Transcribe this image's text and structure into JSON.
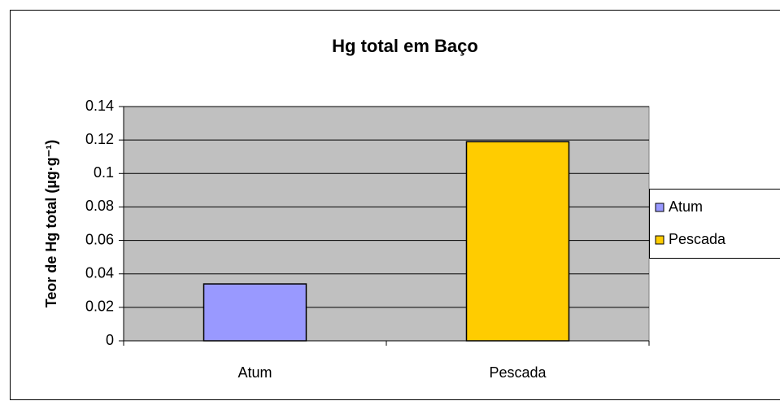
{
  "chart_data": {
    "type": "bar",
    "title": "Hg total em Baço",
    "y_label": "Teor de Hg total (µg·g⁻¹)",
    "categories": [
      "Atum",
      "Pescada"
    ],
    "values": [
      0.034,
      0.119
    ],
    "colors": [
      "#9999ff",
      "#ffcc00"
    ],
    "ylim": [
      0,
      0.14
    ],
    "yticks": [
      0,
      0.02,
      0.04,
      0.06,
      0.08,
      0.1,
      0.12,
      0.14
    ],
    "grid": true,
    "legend": "right"
  }
}
